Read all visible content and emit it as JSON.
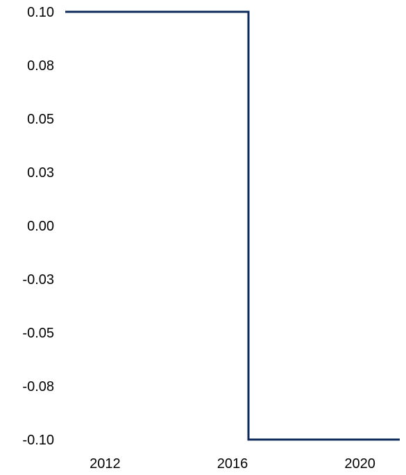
{
  "chart_data": {
    "type": "line",
    "title": "",
    "xlabel": "",
    "ylabel": "",
    "line_style": "step",
    "x_ticks": [
      "2012",
      "2016",
      "2020"
    ],
    "x_tick_values": [
      2012,
      2016,
      2020
    ],
    "y_ticks": [
      "0.10",
      "0.08",
      "0.05",
      "0.03",
      "0.00",
      "-0.03",
      "-0.05",
      "-0.08",
      "-0.10"
    ],
    "y_tick_values": [
      0.1,
      0.075,
      0.05,
      0.025,
      0.0,
      -0.025,
      -0.05,
      -0.075,
      -0.1
    ],
    "xlim": [
      2010.75,
      2021.25
    ],
    "ylim": [
      -0.1,
      0.1
    ],
    "grid": false,
    "legend": "none",
    "series": [
      {
        "color": "#0d2a5e",
        "x": [
          2010.75,
          2016.5,
          2016.5,
          2021.25
        ],
        "y": [
          0.1,
          0.1,
          -0.1,
          -0.1
        ]
      }
    ]
  }
}
